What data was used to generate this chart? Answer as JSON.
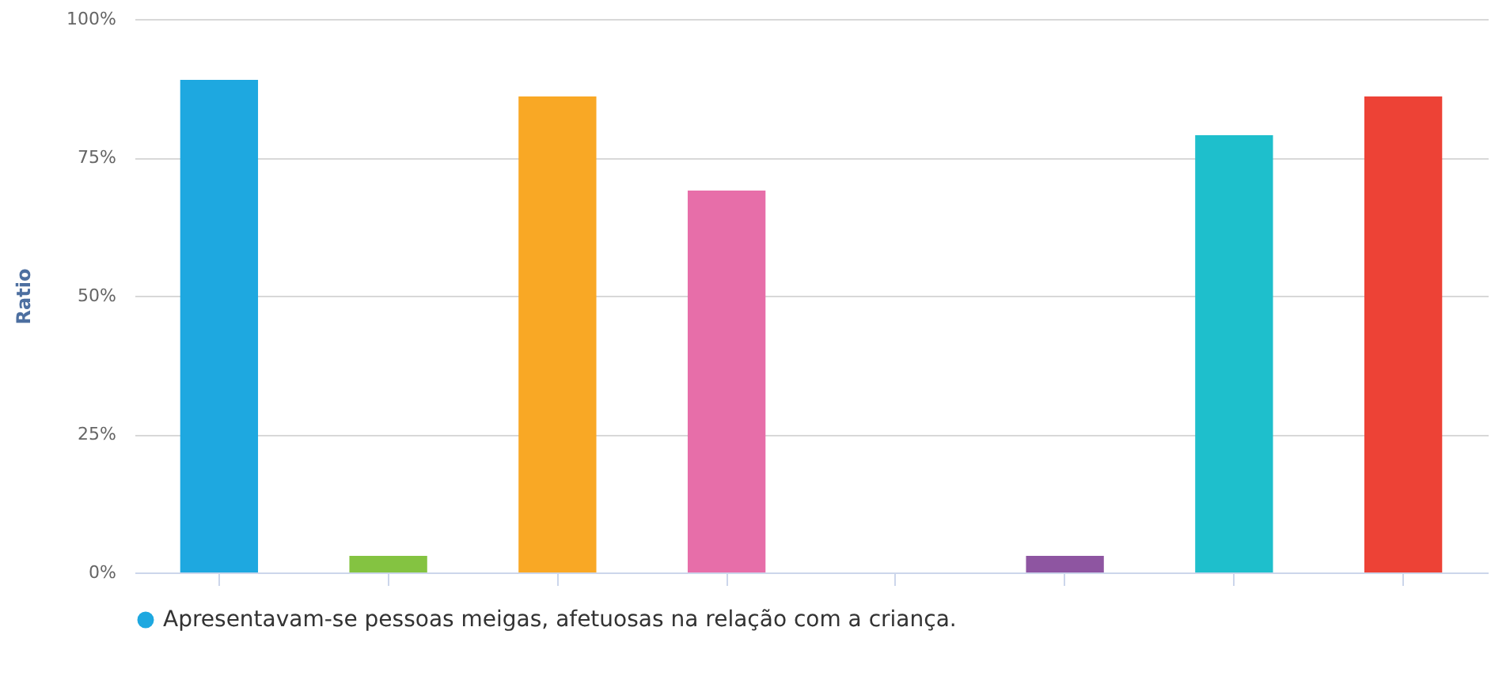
{
  "chart_data": {
    "type": "bar",
    "ylabel": "Ratio",
    "categories": [
      null,
      null,
      null,
      null,
      null,
      null,
      null,
      null
    ],
    "series": [
      {
        "name": "Apresentavam-se pessoas meigas, afetuosas na relação com a criança.",
        "colors": [
          "#1ea8e0",
          "#84c341",
          "#f9a825",
          "#e76ea9",
          "#1ea8e0",
          "#8e55a1",
          "#1ebfcc",
          "#ed4236"
        ],
        "values": [
          89,
          3,
          86,
          69,
          0,
          3,
          79,
          86
        ]
      }
    ],
    "ylim": [
      0,
      100
    ],
    "yticks": [
      {
        "value": 0,
        "label": "0%"
      },
      {
        "value": 25,
        "label": "25%"
      },
      {
        "value": 50,
        "label": "50%"
      },
      {
        "value": 75,
        "label": "75%"
      },
      {
        "value": 100,
        "label": "100%"
      }
    ],
    "grid": "y",
    "legend": "bottom",
    "tick_labels": "y"
  }
}
